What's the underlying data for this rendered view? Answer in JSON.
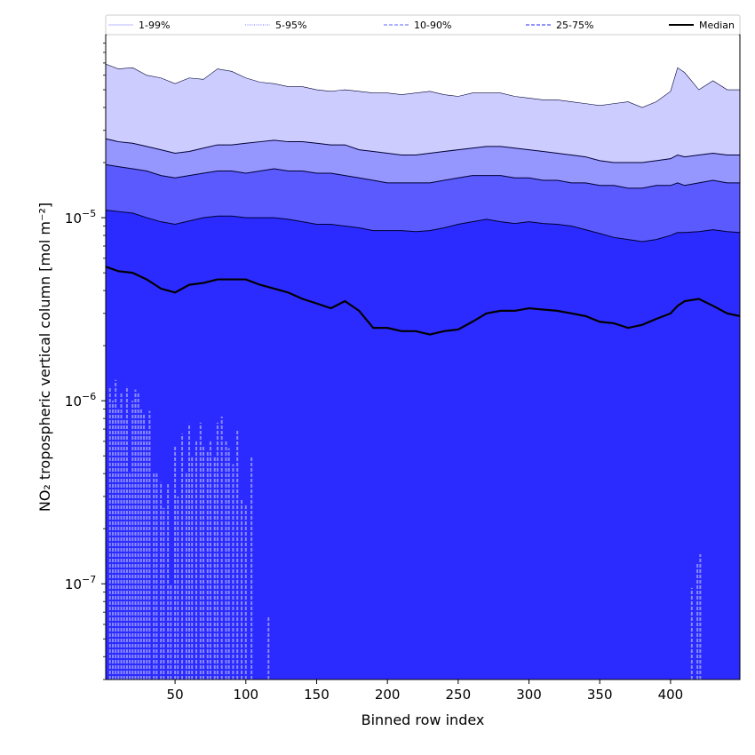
{
  "chart_data": {
    "type": "area",
    "xlabel": "Binned row index",
    "ylabel": "NO₂ tropospheric vertical column [mol m⁻²]",
    "yscale": "log",
    "xlim": [
      1,
      449
    ],
    "ylim": [
      3e-08,
      0.0001
    ],
    "x_ticks": [
      50,
      100,
      150,
      200,
      250,
      300,
      350,
      400
    ],
    "x_tick_labels": [
      "50",
      "100",
      "150",
      "200",
      "250",
      "300",
      "350",
      "400"
    ],
    "y_ticks": [
      1e-07,
      1e-06,
      1e-05
    ],
    "y_tick_labels": [
      "10",
      "10",
      "10"
    ],
    "y_tick_exponents": [
      "−7",
      "−6",
      "−5"
    ],
    "legend": {
      "placement": "top",
      "entries": [
        {
          "label": "1-99%",
          "color": "#c8c8ff",
          "style": "solid"
        },
        {
          "label": "5-95%",
          "color": "#8c8cff",
          "style": "dotted"
        },
        {
          "label": "10-90%",
          "color": "#8080ff",
          "style": "dashed"
        },
        {
          "label": "25-75%",
          "color": "#5050ff",
          "style": "dashed"
        },
        {
          "label": "Median",
          "color": "#000000",
          "style": "solid"
        }
      ]
    },
    "colors": {
      "band_1_99": "#ccccff",
      "band_5_95": "#9696ff",
      "band_10_90": "#5a5aff",
      "band_25_75": "#2b2bff",
      "median": "#000000",
      "low_spikes": "#8a8aff"
    },
    "x": [
      1,
      10,
      20,
      30,
      40,
      50,
      60,
      70,
      80,
      90,
      100,
      110,
      120,
      130,
      140,
      150,
      160,
      170,
      180,
      190,
      200,
      210,
      220,
      230,
      240,
      250,
      260,
      270,
      280,
      290,
      300,
      310,
      320,
      330,
      340,
      350,
      360,
      370,
      380,
      390,
      400,
      405,
      410,
      420,
      430,
      440,
      449
    ],
    "series": [
      {
        "name": "1-99%",
        "band": "upper",
        "values": [
          6.9e-05,
          6.5e-05,
          6.6e-05,
          6e-05,
          5.8e-05,
          5.4e-05,
          5.8e-05,
          5.7e-05,
          6.5e-05,
          6.3e-05,
          5.8e-05,
          5.5e-05,
          5.4e-05,
          5.2e-05,
          5.2e-05,
          5e-05,
          4.9e-05,
          5e-05,
          4.9e-05,
          4.8e-05,
          4.8e-05,
          4.7e-05,
          4.8e-05,
          4.9e-05,
          4.7e-05,
          4.6e-05,
          4.8e-05,
          4.8e-05,
          4.8e-05,
          4.6e-05,
          4.5e-05,
          4.4e-05,
          4.4e-05,
          4.3e-05,
          4.2e-05,
          4.1e-05,
          4.2e-05,
          4.3e-05,
          4e-05,
          4.3e-05,
          4.9e-05,
          6.6e-05,
          6.2e-05,
          5e-05,
          5.6e-05,
          5e-05,
          5e-05
        ]
      },
      {
        "name": "5-95%",
        "band": "upper",
        "values": [
          2.7e-05,
          2.6e-05,
          2.55e-05,
          2.45e-05,
          2.35e-05,
          2.25e-05,
          2.3e-05,
          2.4e-05,
          2.5e-05,
          2.5e-05,
          2.55e-05,
          2.6e-05,
          2.65e-05,
          2.6e-05,
          2.6e-05,
          2.55e-05,
          2.5e-05,
          2.5e-05,
          2.35e-05,
          2.3e-05,
          2.25e-05,
          2.2e-05,
          2.2e-05,
          2.25e-05,
          2.3e-05,
          2.35e-05,
          2.4e-05,
          2.45e-05,
          2.45e-05,
          2.4e-05,
          2.35e-05,
          2.3e-05,
          2.25e-05,
          2.2e-05,
          2.15e-05,
          2.05e-05,
          2e-05,
          2e-05,
          2e-05,
          2.05e-05,
          2.1e-05,
          2.2e-05,
          2.15e-05,
          2.2e-05,
          2.25e-05,
          2.2e-05,
          2.2e-05
        ]
      },
      {
        "name": "10-90%",
        "band": "upper",
        "values": [
          1.95e-05,
          1.9e-05,
          1.85e-05,
          1.8e-05,
          1.7e-05,
          1.65e-05,
          1.7e-05,
          1.75e-05,
          1.8e-05,
          1.8e-05,
          1.75e-05,
          1.8e-05,
          1.85e-05,
          1.8e-05,
          1.8e-05,
          1.75e-05,
          1.75e-05,
          1.7e-05,
          1.65e-05,
          1.6e-05,
          1.55e-05,
          1.55e-05,
          1.55e-05,
          1.55e-05,
          1.6e-05,
          1.65e-05,
          1.7e-05,
          1.7e-05,
          1.7e-05,
          1.65e-05,
          1.65e-05,
          1.6e-05,
          1.6e-05,
          1.55e-05,
          1.55e-05,
          1.5e-05,
          1.5e-05,
          1.45e-05,
          1.45e-05,
          1.5e-05,
          1.5e-05,
          1.55e-05,
          1.5e-05,
          1.55e-05,
          1.6e-05,
          1.55e-05,
          1.55e-05
        ]
      },
      {
        "name": "25-75%",
        "band": "upper",
        "values": [
          1.1e-05,
          1.08e-05,
          1.06e-05,
          1e-05,
          9.5e-06,
          9.2e-06,
          9.6e-06,
          1e-05,
          1.02e-05,
          1.02e-05,
          1e-05,
          1e-05,
          1e-05,
          9.8e-06,
          9.5e-06,
          9.2e-06,
          9.2e-06,
          9e-06,
          8.8e-06,
          8.5e-06,
          8.5e-06,
          8.5e-06,
          8.4e-06,
          8.5e-06,
          8.8e-06,
          9.2e-06,
          9.5e-06,
          9.8e-06,
          9.5e-06,
          9.3e-06,
          9.5e-06,
          9.3e-06,
          9.2e-06,
          9e-06,
          8.6e-06,
          8.2e-06,
          7.8e-06,
          7.6e-06,
          7.4e-06,
          7.6e-06,
          8e-06,
          8.3e-06,
          8.3e-06,
          8.4e-06,
          8.6e-06,
          8.4e-06,
          8.3e-06
        ]
      },
      {
        "name": "Median",
        "values": [
          5.4e-06,
          5.1e-06,
          5e-06,
          4.6e-06,
          4.1e-06,
          3.9e-06,
          4.3e-06,
          4.4e-06,
          4.6e-06,
          4.6e-06,
          4.6e-06,
          4.3e-06,
          4.1e-06,
          3.9e-06,
          3.6e-06,
          3.4e-06,
          3.2e-06,
          3.5e-06,
          3.1e-06,
          2.5e-06,
          2.5e-06,
          2.4e-06,
          2.4e-06,
          2.3e-06,
          2.4e-06,
          2.45e-06,
          2.7e-06,
          3e-06,
          3.1e-06,
          3.1e-06,
          3.2e-06,
          3.15e-06,
          3.1e-06,
          3e-06,
          2.9e-06,
          2.7e-06,
          2.65e-06,
          2.5e-06,
          2.6e-06,
          2.8e-06,
          3e-06,
          3.3e-06,
          3.5e-06,
          3.6e-06,
          3.3e-06,
          3e-06,
          2.9e-06
        ]
      }
    ],
    "low_spikes": [
      {
        "x": 4,
        "top": 1.2e-06
      },
      {
        "x": 6,
        "top": 1e-06
      },
      {
        "x": 8,
        "top": 1.3e-06
      },
      {
        "x": 10,
        "top": 9e-07
      },
      {
        "x": 12,
        "top": 1.1e-06
      },
      {
        "x": 14,
        "top": 8e-07
      },
      {
        "x": 16,
        "top": 1.2e-06
      },
      {
        "x": 18,
        "top": 4e-07
      },
      {
        "x": 20,
        "top": 1e-06
      },
      {
        "x": 22,
        "top": 1.15e-06
      },
      {
        "x": 24,
        "top": 1.1e-06
      },
      {
        "x": 26,
        "top": 9e-07
      },
      {
        "x": 28,
        "top": 8.5e-07
      },
      {
        "x": 30,
        "top": 7e-07
      },
      {
        "x": 32,
        "top": 8.8e-07
      },
      {
        "x": 35,
        "top": 4e-07
      },
      {
        "x": 37,
        "top": 4e-07
      },
      {
        "x": 40,
        "top": 3.6e-07
      },
      {
        "x": 42,
        "top": 2.6e-07
      },
      {
        "x": 45,
        "top": 3.5e-07
      },
      {
        "x": 47,
        "top": 1e-07
      },
      {
        "x": 50,
        "top": 5.6e-07
      },
      {
        "x": 52,
        "top": 3e-07
      },
      {
        "x": 55,
        "top": 6.6e-07
      },
      {
        "x": 58,
        "top": 4e-07
      },
      {
        "x": 60,
        "top": 7.5e-07
      },
      {
        "x": 62,
        "top": 5e-07
      },
      {
        "x": 65,
        "top": 6e-07
      },
      {
        "x": 68,
        "top": 7.6e-07
      },
      {
        "x": 70,
        "top": 5.6e-07
      },
      {
        "x": 73,
        "top": 5.3e-07
      },
      {
        "x": 75,
        "top": 6e-07
      },
      {
        "x": 78,
        "top": 5e-07
      },
      {
        "x": 80,
        "top": 7.6e-07
      },
      {
        "x": 83,
        "top": 8.2e-07
      },
      {
        "x": 86,
        "top": 6e-07
      },
      {
        "x": 88,
        "top": 5.5e-07
      },
      {
        "x": 91,
        "top": 4.5e-07
      },
      {
        "x": 94,
        "top": 7e-07
      },
      {
        "x": 97,
        "top": 2.9e-07
      },
      {
        "x": 100,
        "top": 2.7e-07
      },
      {
        "x": 104,
        "top": 5e-07
      },
      {
        "x": 116,
        "top": 6.6e-08
      },
      {
        "x": 415,
        "top": 9.5e-08
      },
      {
        "x": 419,
        "top": 1.3e-07
      },
      {
        "x": 421,
        "top": 1.45e-07
      }
    ]
  }
}
